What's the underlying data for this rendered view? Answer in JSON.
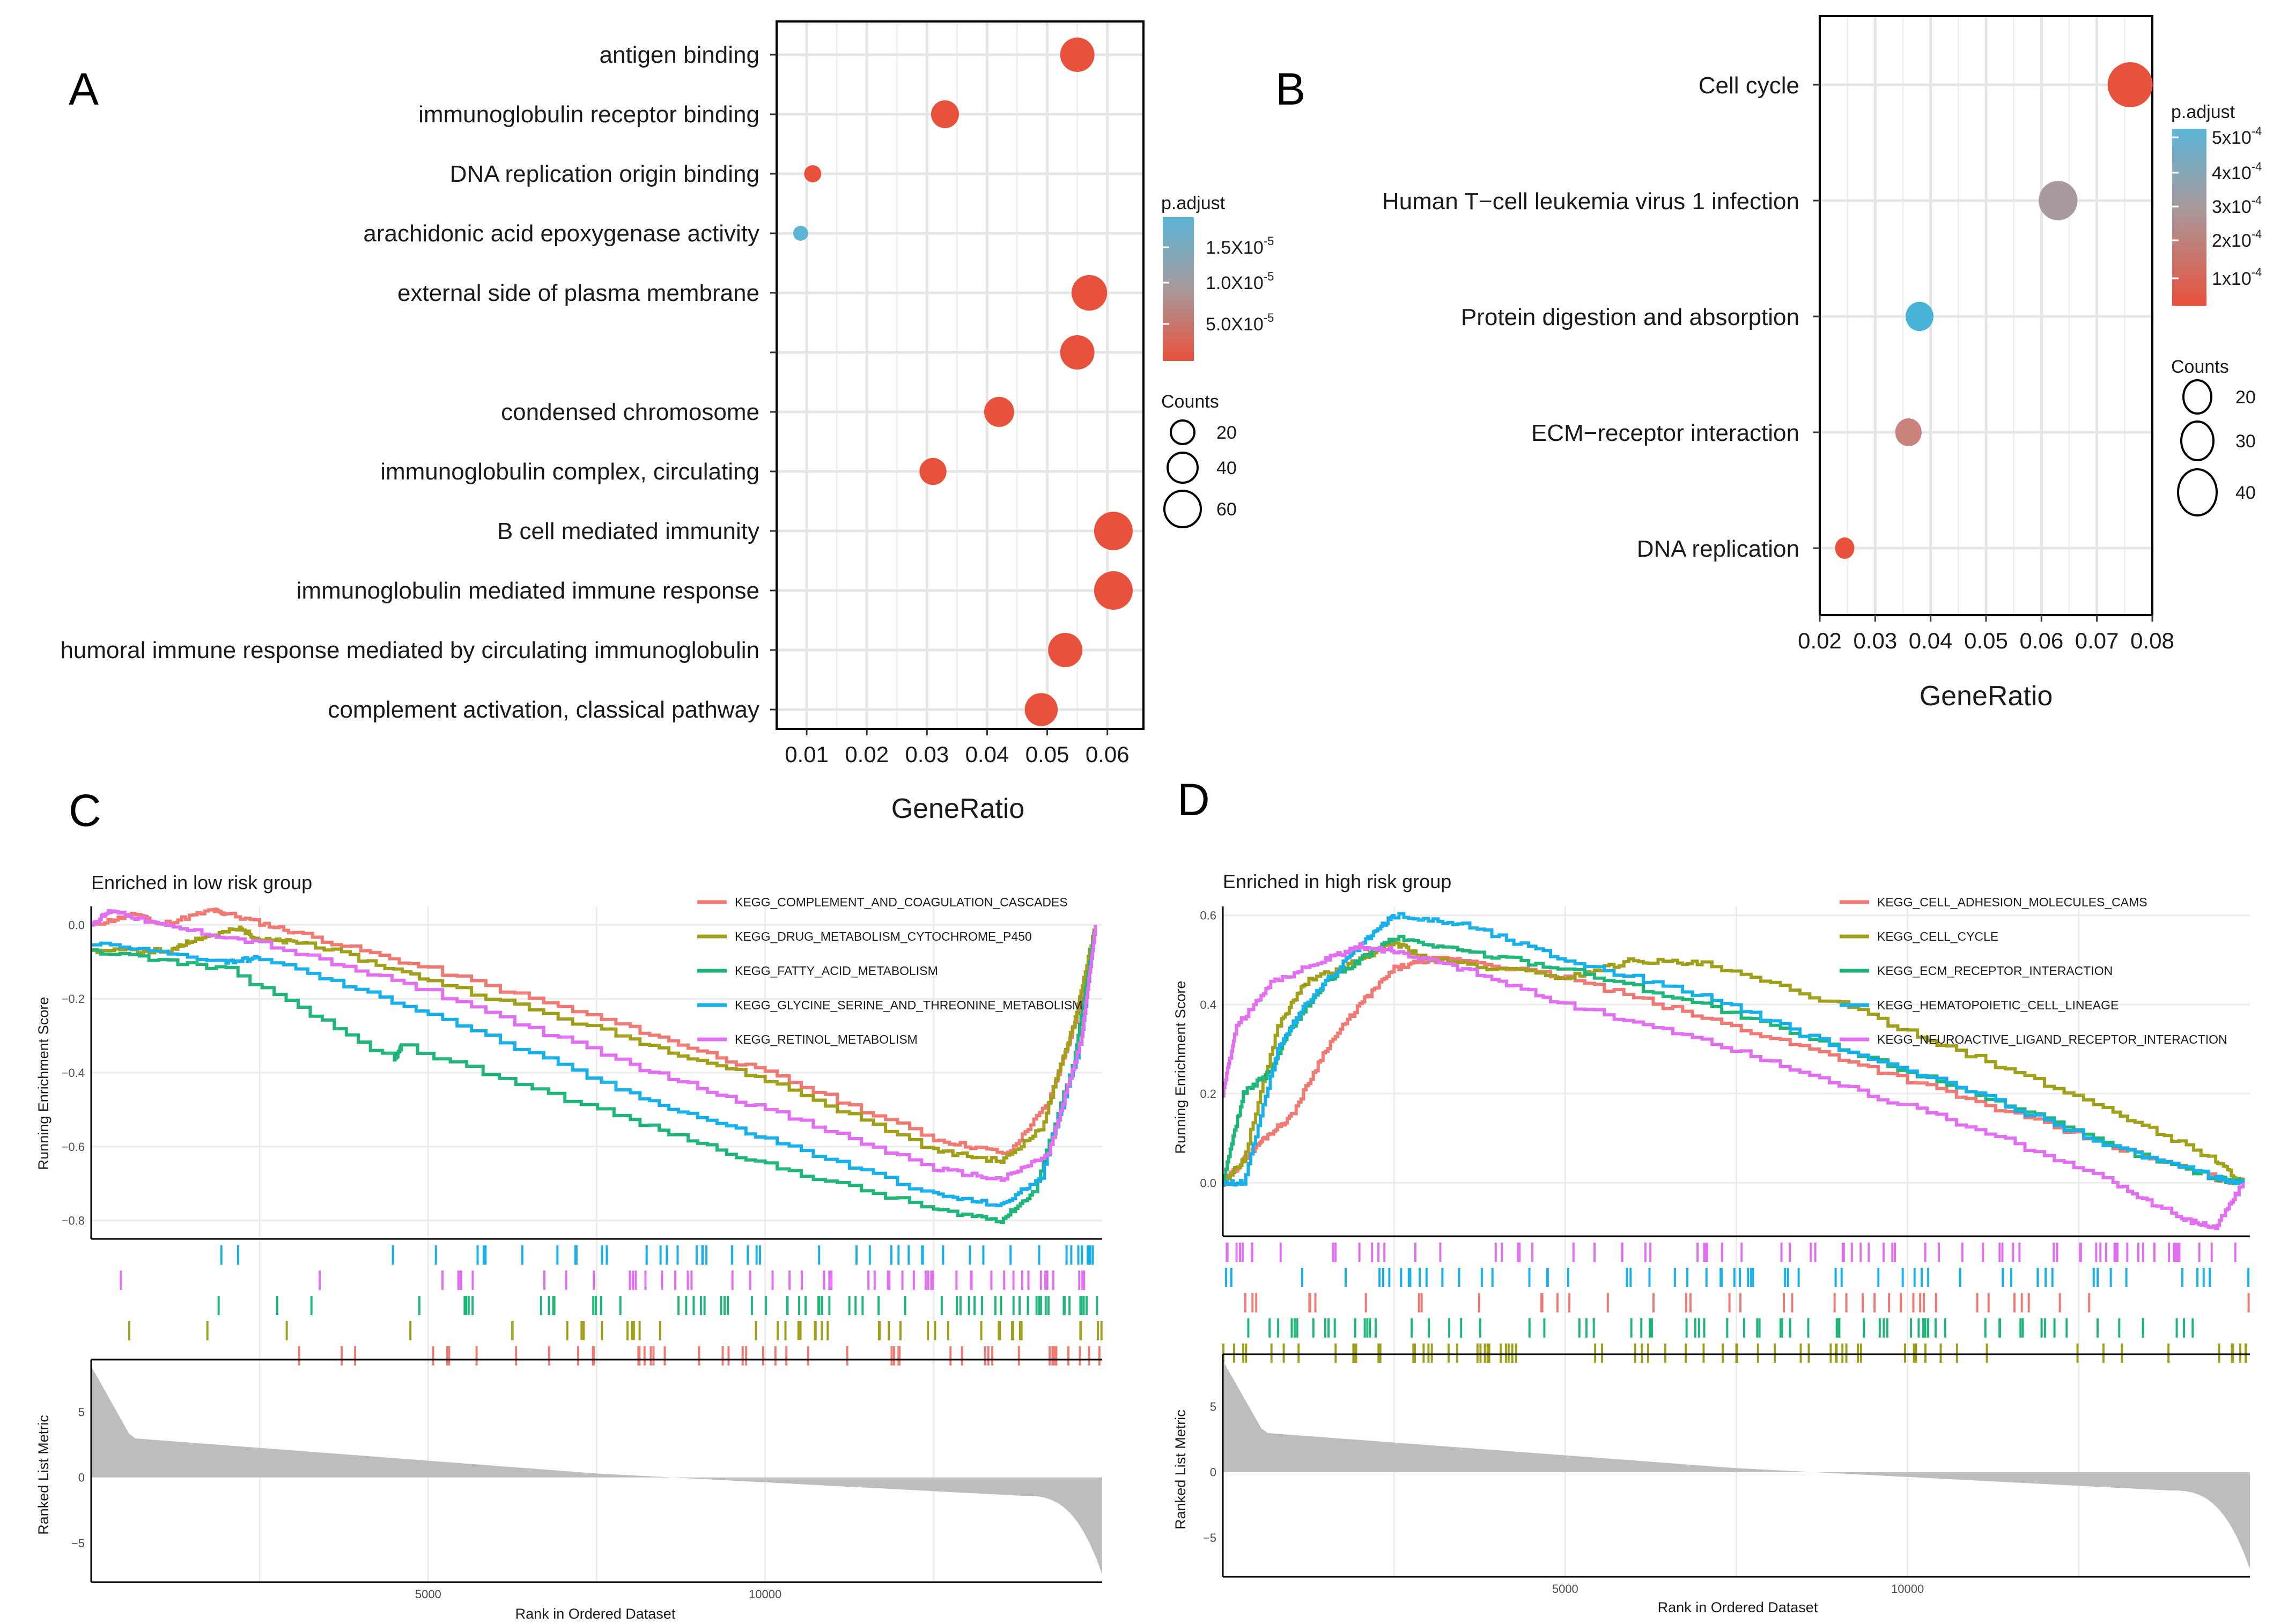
{
  "chart_data": [
    {
      "panel": "A",
      "type": "scatter",
      "subtype": "dotplot",
      "xlabel": "GeneRatio",
      "xlim": [
        0.005,
        0.066
      ],
      "xticks": [
        "0.01",
        "0.02",
        "0.03",
        "0.04",
        "0.05",
        "0.06"
      ],
      "categories": [
        {
          "label": "antigen binding",
          "x": 0.055,
          "count": 55,
          "p_adjust": 3e-06
        },
        {
          "label": "immunoglobulin receptor binding",
          "x": 0.033,
          "count": 40,
          "p_adjust": 3e-06
        },
        {
          "label": "DNA replication origin binding",
          "x": 0.011,
          "count": 15,
          "p_adjust": 3e-06
        },
        {
          "label": "arachidonic acid epoxygenase activity",
          "x": 0.009,
          "count": 10,
          "p_adjust": 1.7e-05
        },
        {
          "label": "external side of plasma membrane",
          "x": 0.057,
          "count": 58,
          "p_adjust": 3e-06
        },
        {
          "label": "",
          "x": 0.055,
          "count": 55,
          "p_adjust": 3e-06
        },
        {
          "label": "condensed chromosome",
          "x": 0.042,
          "count": 45,
          "p_adjust": 3e-06
        },
        {
          "label": "immunoglobulin complex, circulating",
          "x": 0.031,
          "count": 38,
          "p_adjust": 3e-06
        },
        {
          "label": "B cell mediated immunity",
          "x": 0.061,
          "count": 65,
          "p_adjust": 3e-06
        },
        {
          "label": "immunoglobulin mediated immune response",
          "x": 0.061,
          "count": 65,
          "p_adjust": 3e-06
        },
        {
          "label": "humoral immune response mediated by circulating immunoglobulin",
          "x": 0.053,
          "count": 55,
          "p_adjust": 3e-06
        },
        {
          "label": "complement activation, classical pathway",
          "x": 0.049,
          "count": 52,
          "p_adjust": 3e-06
        }
      ],
      "legend": {
        "color_title": "p.adjust",
        "color_labels": [
          "1.5X10",
          "1.0X10",
          "5.0X10"
        ],
        "color_exps": [
          "-5",
          "-5",
          "-5"
        ],
        "size_title": "Counts",
        "size_labels": [
          "20",
          "40",
          "60"
        ],
        "low_color": "#e8513c",
        "high_color": "#5bb4d6"
      }
    },
    {
      "panel": "B",
      "type": "scatter",
      "subtype": "dotplot",
      "xlabel": "GeneRatio",
      "xlim": [
        0.02,
        0.08
      ],
      "xticks": [
        "0.02",
        "0.03",
        "0.04",
        "0.05",
        "0.06",
        "0.07",
        "0.08"
      ],
      "categories": [
        {
          "label": "Cell cycle",
          "x": 0.076,
          "count": 46,
          "p_adjust": 1e-05,
          "color": "#e8513c"
        },
        {
          "label": "Human T−cell leukemia virus 1 infection",
          "x": 0.063,
          "count": 38,
          "p_adjust": 0.00029,
          "color": "#a89a9c"
        },
        {
          "label": "Protein digestion and absorption",
          "x": 0.038,
          "count": 24,
          "p_adjust": 0.0005,
          "color": "#47b3d8"
        },
        {
          "label": "ECM−receptor interaction",
          "x": 0.036,
          "count": 22,
          "p_adjust": 0.00017,
          "color": "#c9827c"
        },
        {
          "label": "DNA replication",
          "x": 0.0245,
          "count": 13,
          "p_adjust": 2e-05,
          "color": "#e8513c"
        }
      ],
      "legend": {
        "color_title": "p.adjust",
        "color_labels": [
          "5x10",
          "4x10",
          "3x10",
          "2x10",
          "1x10"
        ],
        "color_exps": [
          "-4",
          "-4",
          "-4",
          "-4",
          "-4"
        ],
        "size_title": "Counts",
        "size_labels": [
          "20",
          "30",
          "40"
        ],
        "low_color": "#e8513c",
        "high_color": "#5bb4d6"
      }
    },
    {
      "panel": "C",
      "type": "line",
      "subtype": "gsea",
      "title": "Enriched in low risk group",
      "xlabel": "Rank in Ordered Dataset",
      "ylabel_top": "Running Enrichment Score",
      "ylabel_bottom": "Ranked List Metric",
      "xlim": [
        0,
        15000
      ],
      "xticks": [
        "5000",
        "10000"
      ],
      "ylim": [
        -0.85,
        0.05
      ],
      "yticks": [
        "0.0",
        "−0.2",
        "−0.4",
        "−0.6",
        "−0.8"
      ],
      "metric_ylim": [
        -8,
        9
      ],
      "metric_yticks": [
        "5",
        "0",
        "−5"
      ],
      "series": [
        {
          "name": "KEGG_COMPLEMENT_AND_COAGULATION_CASCADES",
          "color": "#f07a73",
          "x": [
            0,
            700,
            1000,
            1800,
            2000,
            3000,
            5000,
            8000,
            10000,
            12500,
            13600,
            14200,
            14700,
            14900
          ],
          "y": [
            0.0,
            0.03,
            0.0,
            0.04,
            0.03,
            -0.02,
            -0.12,
            -0.28,
            -0.4,
            -0.58,
            -0.62,
            -0.48,
            -0.2,
            0.0
          ]
        },
        {
          "name": "KEGG_DRUG_METABOLISM_CYTOCHROME_P450",
          "color": "#a1a01a",
          "x": [
            0,
            1200,
            1500,
            2200,
            2500,
            3200,
            5000,
            8000,
            10000,
            12500,
            13500,
            14100,
            14600,
            14900
          ],
          "y": [
            -0.07,
            -0.07,
            -0.04,
            -0.01,
            -0.04,
            -0.05,
            -0.15,
            -0.31,
            -0.42,
            -0.61,
            -0.64,
            -0.55,
            -0.25,
            0.0
          ]
        },
        {
          "name": "KEGG_FATTY_ACID_METABOLISM",
          "color": "#20b67a",
          "x": [
            0,
            2000,
            4500,
            4600,
            8000,
            10000,
            12500,
            13500,
            14000,
            14600,
            14900
          ],
          "y": [
            -0.07,
            -0.12,
            -0.37,
            -0.33,
            -0.53,
            -0.65,
            -0.77,
            -0.8,
            -0.72,
            -0.35,
            0.0
          ]
        },
        {
          "name": "KEGG_GLYCINE_SERINE_AND_THREONINE_METABOLISM",
          "color": "#18b0ea",
          "x": [
            0,
            2000,
            2500,
            5000,
            8000,
            10000,
            12500,
            13500,
            14100,
            14700,
            14900
          ],
          "y": [
            -0.05,
            -0.1,
            -0.09,
            -0.24,
            -0.46,
            -0.58,
            -0.73,
            -0.76,
            -0.68,
            -0.3,
            0.0
          ]
        },
        {
          "name": "KEGG_RETINOL_METABOLISM",
          "color": "#e26ef2",
          "x": [
            0,
            300,
            1000,
            2500,
            5000,
            8000,
            10000,
            12500,
            13500,
            14200,
            14700,
            14900
          ],
          "y": [
            0.0,
            0.04,
            0.0,
            -0.05,
            -0.18,
            -0.38,
            -0.5,
            -0.66,
            -0.69,
            -0.62,
            -0.3,
            0.0
          ]
        }
      ]
    },
    {
      "panel": "D",
      "type": "line",
      "subtype": "gsea",
      "title": "Enriched in high risk group",
      "xlabel": "Rank in Ordered Dataset",
      "ylabel_top": "Running Enrichment Score",
      "ylabel_bottom": "Ranked List Metric",
      "xlim": [
        0,
        15000
      ],
      "xticks": [
        "5000",
        "10000"
      ],
      "ylim": [
        -0.12,
        0.62
      ],
      "yticks": [
        "0.6",
        "0.4",
        "0.2",
        "0.0"
      ],
      "metric_ylim": [
        -8,
        9
      ],
      "metric_yticks": [
        "5",
        "0",
        "−5"
      ],
      "series": [
        {
          "name": "KEGG_CELL_ADHESION_MOLECULES_CAMS",
          "color": "#f07a73",
          "x": [
            0,
            300,
            600,
            1000,
            1500,
            2000,
            2500,
            3000,
            3500,
            5000,
            7000,
            9000,
            11000,
            13000,
            14500,
            14900
          ],
          "y": [
            0.0,
            0.05,
            0.1,
            0.15,
            0.3,
            0.4,
            0.48,
            0.5,
            0.5,
            0.46,
            0.37,
            0.28,
            0.18,
            0.08,
            0.01,
            0.0
          ]
        },
        {
          "name": "KEGG_CELL_CYCLE",
          "color": "#a1a01a",
          "x": [
            0,
            300,
            800,
            1200,
            2000,
            2500,
            3000,
            5000,
            6000,
            7000,
            9000,
            11000,
            13000,
            14500,
            14900
          ],
          "y": [
            0.0,
            0.05,
            0.35,
            0.45,
            0.5,
            0.54,
            0.5,
            0.46,
            0.5,
            0.49,
            0.4,
            0.28,
            0.16,
            0.05,
            0.0
          ]
        },
        {
          "name": "KEGG_ECM_RECEPTOR_INTERACTION",
          "color": "#20b67a",
          "x": [
            0,
            300,
            700,
            1000,
            1500,
            2000,
            2500,
            3500,
            5000,
            7000,
            9000,
            11000,
            13000,
            14500,
            14900
          ],
          "y": [
            0.0,
            0.2,
            0.25,
            0.35,
            0.45,
            0.5,
            0.55,
            0.52,
            0.48,
            0.4,
            0.3,
            0.2,
            0.08,
            0.01,
            0.0
          ]
        },
        {
          "name": "KEGG_HEMATOPOIETIC_CELL_LINEAGE",
          "color": "#18b0ea",
          "x": [
            0,
            300,
            800,
            1200,
            1800,
            2200,
            2500,
            3500,
            5000,
            7000,
            9000,
            11000,
            13000,
            14500,
            14900
          ],
          "y": [
            0.0,
            0.0,
            0.3,
            0.4,
            0.5,
            0.56,
            0.6,
            0.58,
            0.5,
            0.42,
            0.3,
            0.2,
            0.08,
            0.01,
            0.0
          ]
        },
        {
          "name": "KEGG_NEUROACTIVE_LIGAND_RECEPTOR_INTERACTION",
          "color": "#e26ef2",
          "x": [
            0,
            200,
            700,
            1500,
            2000,
            2500,
            3500,
            5000,
            7000,
            9000,
            11000,
            13000,
            14000,
            14500,
            14900
          ],
          "y": [
            0.2,
            0.35,
            0.45,
            0.5,
            0.53,
            0.52,
            0.48,
            0.4,
            0.32,
            0.22,
            0.12,
            0.0,
            -0.08,
            -0.1,
            0.0
          ]
        }
      ]
    }
  ]
}
